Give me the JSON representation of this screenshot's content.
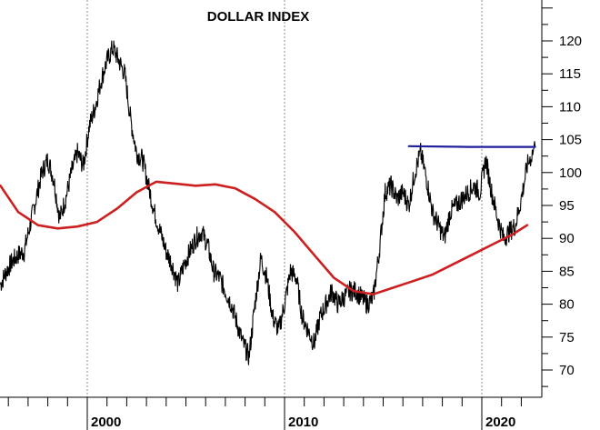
{
  "chart_data": {
    "type": "line",
    "title": "DOLLAR INDEX",
    "xlabel": "",
    "ylabel": "",
    "x_tick_labels": [
      "2000",
      "2010",
      "2020"
    ],
    "y_tick_labels": [
      "70",
      "75",
      "80",
      "85",
      "90",
      "95",
      "100",
      "105",
      "110",
      "115",
      "120"
    ],
    "ylim": [
      65,
      125
    ],
    "xlim": [
      1995.6,
      2022.9
    ],
    "grid": "vertical dashed lines at 2000, 2010, 2020",
    "series": [
      {
        "style": "price",
        "color": "#000000",
        "x": [
          1995.6,
          1995.9,
          1996.2,
          1996.5,
          1996.8,
          1997.1,
          1997.4,
          1997.7,
          1998.0,
          1998.3,
          1998.6,
          1998.9,
          1999.2,
          1999.5,
          1999.8,
          2000.1,
          2000.4,
          2000.7,
          2001.0,
          2001.3,
          2001.6,
          2001.9,
          2002.2,
          2002.5,
          2002.8,
          2003.1,
          2003.4,
          2003.7,
          2004.0,
          2004.3,
          2004.6,
          2004.9,
          2005.2,
          2005.5,
          2005.8,
          2006.1,
          2006.4,
          2006.7,
          2007.0,
          2007.3,
          2007.6,
          2007.9,
          2008.2,
          2008.5,
          2008.8,
          2009.1,
          2009.4,
          2009.7,
          2010.0,
          2010.3,
          2010.6,
          2010.9,
          2011.2,
          2011.5,
          2011.8,
          2012.1,
          2012.4,
          2012.7,
          2013.0,
          2013.3,
          2013.6,
          2013.9,
          2014.2,
          2014.5,
          2014.8,
          2015.1,
          2015.4,
          2015.7,
          2016.0,
          2016.3,
          2016.6,
          2016.9,
          2017.2,
          2017.5,
          2017.8,
          2018.1,
          2018.4,
          2018.7,
          2019.0,
          2019.3,
          2019.6,
          2019.9,
          2020.2,
          2020.5,
          2020.8,
          2021.1,
          2021.4,
          2021.7,
          2022.0,
          2022.3,
          2022.7
        ],
        "values": [
          83,
          85,
          86.5,
          87.5,
          88,
          92,
          96,
          100,
          102,
          99,
          93,
          96,
          100,
          103,
          101,
          107,
          110,
          114,
          117,
          119,
          117,
          115,
          108,
          103,
          102,
          98,
          94,
          91,
          88,
          86,
          83,
          86,
          88,
          90,
          91,
          89,
          85,
          84,
          82,
          80,
          77,
          74,
          72,
          80,
          87,
          84,
          78,
          76,
          80,
          85,
          84,
          78,
          76,
          74,
          78,
          80,
          82,
          80,
          81,
          82,
          82,
          81,
          80,
          81,
          88,
          97,
          98,
          96,
          97,
          95,
          100,
          103,
          99,
          94,
          92,
          90,
          94,
          95,
          96,
          97,
          98,
          97,
          102,
          97,
          93,
          90,
          91,
          92,
          96,
          101,
          104
        ]
      },
      {
        "style": "moving-average",
        "color": "#cc1f1f",
        "x": [
          1995.6,
          1996.5,
          1997.5,
          1998.5,
          1999.5,
          2000.5,
          2001.5,
          2002.5,
          2003.5,
          2004.5,
          2005.5,
          2006.5,
          2007.5,
          2008.5,
          2009.5,
          2010.5,
          2011.5,
          2012.5,
          2013.5,
          2014.5,
          2015.5,
          2016.5,
          2017.5,
          2018.5,
          2019.5,
          2020.5,
          2021.5,
          2022.3
        ],
        "values": [
          98,
          94,
          92,
          91.5,
          91.8,
          92.5,
          94.5,
          97,
          98.6,
          98.3,
          98,
          98.2,
          97.6,
          96,
          94,
          91,
          87.5,
          84,
          82,
          81.5,
          82.5,
          83.5,
          84.5,
          86,
          87.5,
          89,
          90.5,
          92
        ]
      },
      {
        "style": "resistance",
        "color": "#1f1f9a",
        "x": [
          2016.3,
          2019.3,
          2022.7
        ],
        "values": [
          104,
          103.9,
          103.9
        ]
      }
    ]
  },
  "colors": {
    "price": "#000000",
    "moving_average": "#cc1f1f",
    "resistance": "#1f1f9a",
    "grid": "#8c8c8c",
    "axis": "#000000"
  }
}
